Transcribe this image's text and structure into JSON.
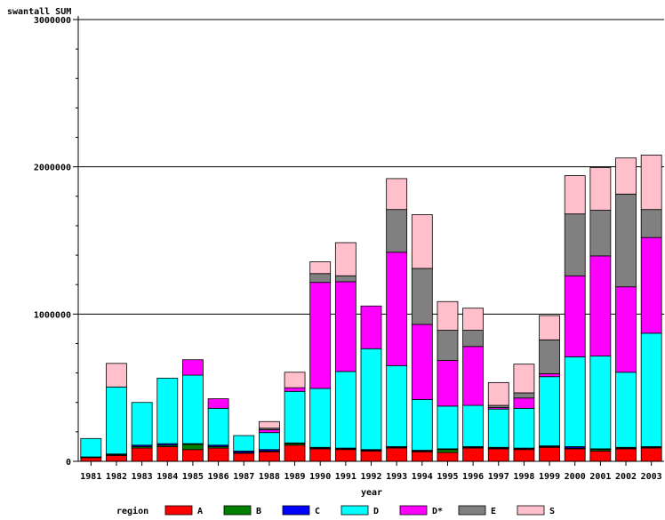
{
  "chart_data": {
    "type": "bar",
    "stacked": true,
    "ylabel": "swantall SUM",
    "xlabel": "year",
    "ylim": [
      0,
      3000000
    ],
    "yticks": [
      0,
      1000000,
      2000000,
      3000000
    ],
    "ytick_labels": [
      "0",
      "1000000",
      "2000000",
      "3000000"
    ],
    "grid": "horizontal major lines",
    "legend_title": "region",
    "legend_position": "bottom",
    "categories": [
      "1981",
      "1982",
      "1983",
      "1984",
      "1985",
      "1986",
      "1987",
      "1988",
      "1989",
      "1990",
      "1991",
      "1992",
      "1993",
      "1994",
      "1995",
      "1996",
      "1997",
      "1998",
      "1999",
      "2000",
      "2001",
      "2002",
      "2003"
    ],
    "series": [
      {
        "name": "A",
        "color": "#ff0000",
        "values": [
          25000,
          40000,
          90000,
          100000,
          80000,
          90000,
          55000,
          65000,
          110000,
          85000,
          80000,
          70000,
          90000,
          65000,
          60000,
          90000,
          85000,
          80000,
          95000,
          85000,
          70000,
          85000,
          90000
        ]
      },
      {
        "name": "B",
        "color": "#008000",
        "values": [
          3000,
          5000,
          10000,
          10000,
          35000,
          10000,
          5000,
          5000,
          10000,
          5000,
          5000,
          5000,
          5000,
          5000,
          20000,
          5000,
          5000,
          5000,
          5000,
          5000,
          10000,
          5000,
          5000
        ]
      },
      {
        "name": "C",
        "color": "#0000ff",
        "values": [
          2000,
          5000,
          10000,
          10000,
          5000,
          10000,
          10000,
          10000,
          5000,
          5000,
          5000,
          5000,
          5000,
          5000,
          5000,
          5000,
          5000,
          5000,
          5000,
          10000,
          5000,
          5000,
          5000
        ]
      },
      {
        "name": "D",
        "color": "#00ffff",
        "values": [
          125000,
          455000,
          290000,
          445000,
          465000,
          250000,
          105000,
          115000,
          350000,
          400000,
          520000,
          685000,
          550000,
          345000,
          290000,
          280000,
          260000,
          270000,
          470000,
          610000,
          630000,
          510000,
          770000
        ]
      },
      {
        "name": "D*",
        "color": "#ff00ff",
        "values": [
          0,
          0,
          0,
          0,
          105000,
          65000,
          0,
          20000,
          25000,
          720000,
          610000,
          290000,
          770000,
          510000,
          310000,
          400000,
          10000,
          70000,
          20000,
          550000,
          680000,
          580000,
          650000
        ]
      },
      {
        "name": "E",
        "color": "#808080",
        "values": [
          0,
          0,
          0,
          0,
          0,
          0,
          0,
          10000,
          0,
          60000,
          40000,
          0,
          290000,
          380000,
          205000,
          110000,
          15000,
          35000,
          230000,
          420000,
          310000,
          630000,
          190000
        ]
      },
      {
        "name": "S",
        "color": "#ffc0cb",
        "values": [
          0,
          160000,
          0,
          0,
          0,
          0,
          0,
          45000,
          105000,
          80000,
          225000,
          0,
          210000,
          365000,
          195000,
          150000,
          155000,
          195000,
          165000,
          260000,
          290000,
          245000,
          370000
        ]
      }
    ]
  }
}
